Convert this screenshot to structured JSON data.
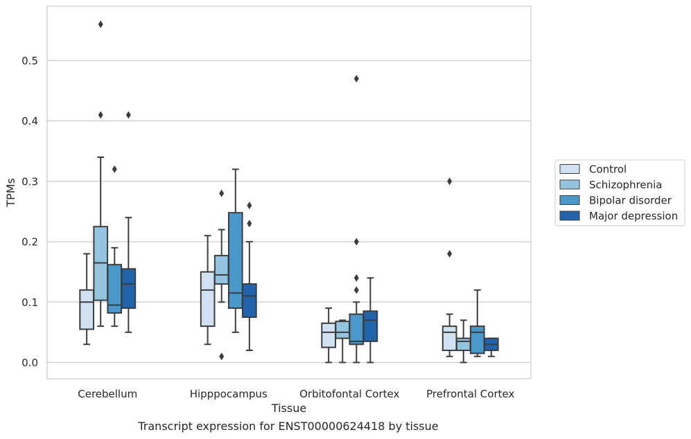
{
  "caption": "Transcript expression for ENST00000624418 by tissue",
  "chart_data": {
    "type": "box",
    "xlabel": "Tissue",
    "ylabel": "TPMs",
    "ylim": [
      -0.027,
      0.59
    ],
    "yticks": [
      "0.0",
      "0.1",
      "0.2",
      "0.3",
      "0.4",
      "0.5"
    ],
    "grid": "horizontal",
    "legend_placement": "outside-right",
    "categories": [
      "Cerebellum",
      "Hipppocampus",
      "Orbitofontal Cortex",
      "Prefrontal Cortex"
    ],
    "series": [
      {
        "name": "Control",
        "color": "#d0e1f2",
        "boxes": [
          {
            "whislo": 0.03,
            "q1": 0.055,
            "med": 0.1,
            "q3": 0.12,
            "whishi": 0.18,
            "fliers": []
          },
          {
            "whislo": 0.03,
            "q1": 0.06,
            "med": 0.12,
            "q3": 0.15,
            "whishi": 0.21,
            "fliers": []
          },
          {
            "whislo": 0.0,
            "q1": 0.025,
            "med": 0.05,
            "q3": 0.065,
            "whishi": 0.09,
            "fliers": []
          },
          {
            "whislo": 0.01,
            "q1": 0.02,
            "med": 0.05,
            "q3": 0.06,
            "whishi": 0.08,
            "fliers": [
              0.18,
              0.3
            ]
          }
        ]
      },
      {
        "name": "Schizophrenia",
        "color": "#94c4df",
        "boxes": [
          {
            "whislo": 0.06,
            "q1": 0.103,
            "med": 0.165,
            "q3": 0.225,
            "whishi": 0.34,
            "fliers": [
              0.41,
              0.56
            ]
          },
          {
            "whislo": 0.1,
            "q1": 0.13,
            "med": 0.145,
            "q3": 0.177,
            "whishi": 0.22,
            "fliers": [
              0.01,
              0.28
            ]
          },
          {
            "whislo": 0.0,
            "q1": 0.04,
            "med": 0.05,
            "q3": 0.068,
            "whishi": 0.07,
            "fliers": []
          },
          {
            "whislo": 0.0,
            "q1": 0.02,
            "med": 0.035,
            "q3": 0.04,
            "whishi": 0.07,
            "fliers": []
          }
        ]
      },
      {
        "name": "Bipolar disorder",
        "color": "#4a98c9",
        "boxes": [
          {
            "whislo": 0.06,
            "q1": 0.082,
            "med": 0.095,
            "q3": 0.162,
            "whishi": 0.19,
            "fliers": [
              0.32
            ]
          },
          {
            "whislo": 0.05,
            "q1": 0.09,
            "med": 0.115,
            "q3": 0.248,
            "whishi": 0.32,
            "fliers": []
          },
          {
            "whislo": 0.0,
            "q1": 0.03,
            "med": 0.035,
            "q3": 0.08,
            "whishi": 0.1,
            "fliers": [
              0.12,
              0.14,
              0.2,
              0.47
            ]
          },
          {
            "whislo": 0.01,
            "q1": 0.015,
            "med": 0.05,
            "q3": 0.06,
            "whishi": 0.12,
            "fliers": []
          }
        ]
      },
      {
        "name": "Major depression",
        "color": "#2164ab",
        "boxes": [
          {
            "whislo": 0.05,
            "q1": 0.09,
            "med": 0.13,
            "q3": 0.155,
            "whishi": 0.24,
            "fliers": [
              0.41
            ]
          },
          {
            "whislo": 0.02,
            "q1": 0.075,
            "med": 0.11,
            "q3": 0.13,
            "whishi": 0.2,
            "fliers": [
              0.23,
              0.26
            ]
          },
          {
            "whislo": 0.0,
            "q1": 0.035,
            "med": 0.07,
            "q3": 0.085,
            "whishi": 0.14,
            "fliers": []
          },
          {
            "whislo": 0.01,
            "q1": 0.02,
            "med": 0.03,
            "q3": 0.04,
            "whishi": 0.04,
            "fliers": []
          }
        ]
      }
    ]
  }
}
